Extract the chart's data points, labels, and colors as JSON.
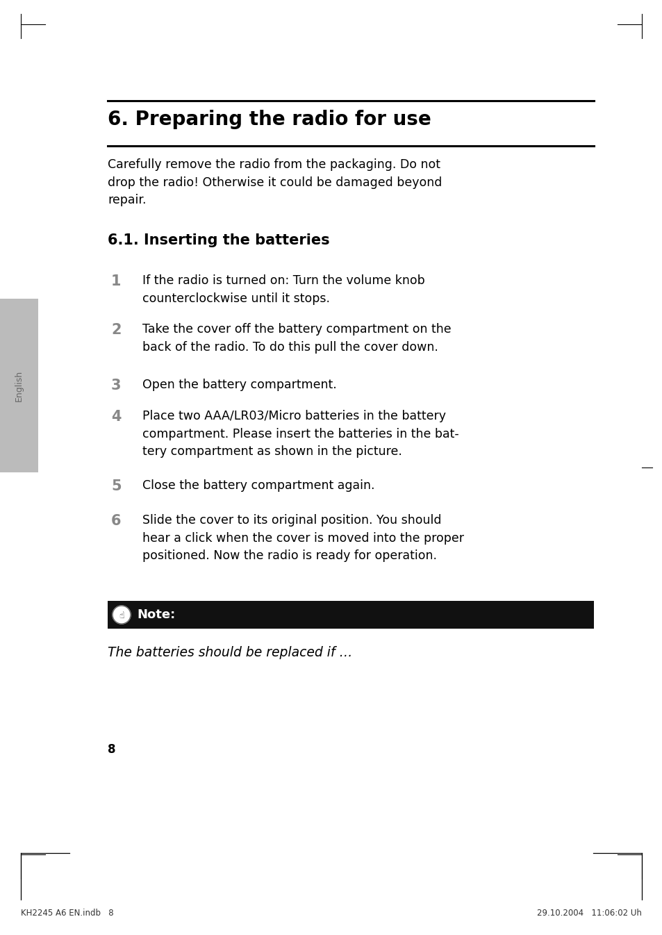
{
  "page_bg": "#ffffff",
  "title": "6. Preparing the radio for use",
  "title_fontsize": 20,
  "title_color": "#000000",
  "hr_color": "#000000",
  "body_text": "Carefully remove the radio from the packaging. Do not\ndrop the radio! Otherwise it could be damaged beyond\nrepair.",
  "body_fontsize": 12.5,
  "body_color": "#000000",
  "subheading": "6.1. Inserting the batteries",
  "subheading_fontsize": 15,
  "subheading_bold": true,
  "steps": [
    {
      "num": "1",
      "text": "If the radio is turned on: Turn the volume knob\ncounterclockwise until it stops."
    },
    {
      "num": "2",
      "text": "Take the cover off the battery compartment on the\nback of the radio. To do this pull the cover down."
    },
    {
      "num": "3",
      "text": "Open the battery compartment."
    },
    {
      "num": "4",
      "text": "Place two AAA/LR03/Micro batteries in the battery\ncompartment. Please insert the batteries in the bat-\ntery compartment as shown in the picture."
    },
    {
      "num": "5",
      "text": "Close the battery compartment again."
    },
    {
      "num": "6",
      "text": "Slide the cover to its original position. You should\nhear a click when the cover is moved into the proper\npositioned. Now the radio is ready for operation."
    }
  ],
  "step_num_fontsize": 15,
  "step_num_color": "#888888",
  "note_bg": "#111111",
  "note_text": "Note:",
  "note_fontsize": 13,
  "note_text_color": "#ffffff",
  "italic_text": "The batteries should be replaced if …",
  "italic_fontsize": 13.5,
  "page_number": "8",
  "footer_left": "KH2245 A6 EN.indb   8",
  "footer_right": "29.10.2004   11:06:02 Uh",
  "footer_fontsize": 8.5,
  "sidebar_text": "English",
  "sidebar_bg": "#bbbbbb",
  "sidebar_text_color": "#666666"
}
